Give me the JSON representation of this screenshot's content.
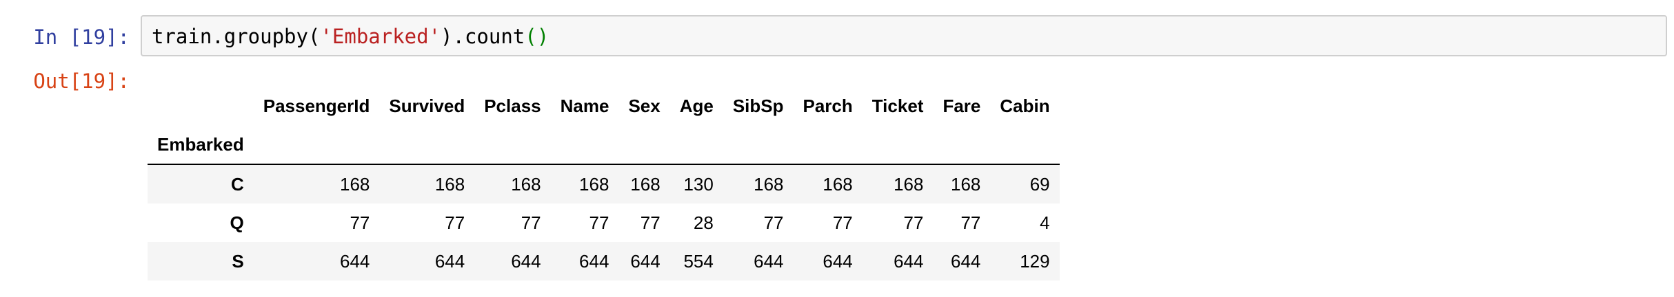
{
  "cell": {
    "in_prompt": "In [19]:",
    "out_prompt": "Out[19]:",
    "code": {
      "prefix": "train.groupby(",
      "string_arg": "'Embarked'",
      "middle": ").count",
      "parens": "()"
    }
  },
  "dataframe": {
    "index_name": "Embarked",
    "columns": [
      "PassengerId",
      "Survived",
      "Pclass",
      "Name",
      "Sex",
      "Age",
      "SibSp",
      "Parch",
      "Ticket",
      "Fare",
      "Cabin"
    ],
    "rows": [
      {
        "index": "C",
        "values": [
          "168",
          "168",
          "168",
          "168",
          "168",
          "130",
          "168",
          "168",
          "168",
          "168",
          "69"
        ]
      },
      {
        "index": "Q",
        "values": [
          "77",
          "77",
          "77",
          "77",
          "77",
          "28",
          "77",
          "77",
          "77",
          "77",
          "4"
        ]
      },
      {
        "index": "S",
        "values": [
          "644",
          "644",
          "644",
          "644",
          "644",
          "554",
          "644",
          "644",
          "644",
          "644",
          "129"
        ]
      }
    ]
  }
}
